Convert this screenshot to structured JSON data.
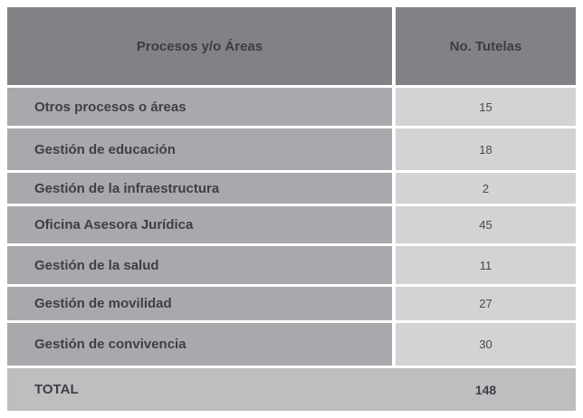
{
  "table": {
    "header": {
      "col_procesos": "Procesos y/o Áreas",
      "col_tutelas": "No. Tutelas"
    },
    "rows": [
      {
        "label": "Otros procesos o áreas",
        "value": "15"
      },
      {
        "label": "Gestión de educación",
        "value": "18"
      },
      {
        "label": "Gestión de la infraestructura",
        "value": "2"
      },
      {
        "label": "Oficina Asesora Jurídica",
        "value": "45"
      },
      {
        "label": "Gestión de la salud",
        "value": "11"
      },
      {
        "label": "Gestión de movilidad",
        "value": "27"
      },
      {
        "label": "Gestión de convivencia",
        "value": "30"
      }
    ],
    "total": {
      "label": "TOTAL",
      "value": "148"
    }
  },
  "colors": {
    "header_bg": "#808285",
    "row_label_bg": "#a7a9ac",
    "row_value_bg": "#d1d3d4",
    "total_row_bg": "#bcbec0",
    "text": "#3e4043",
    "page_bg": "#ffffff"
  },
  "chart_data": {
    "type": "table",
    "columns": [
      "Procesos y/o Áreas",
      "No. Tutelas"
    ],
    "rows": [
      [
        "Otros procesos o áreas",
        15
      ],
      [
        "Gestión de educación",
        18
      ],
      [
        "Gestión de la infraestructura",
        2
      ],
      [
        "Oficina Asesora Jurídica",
        45
      ],
      [
        "Gestión de la salud",
        11
      ],
      [
        "Gestión de movilidad",
        27
      ],
      [
        "Gestión de convivencia",
        30
      ]
    ],
    "total_label": "TOTAL",
    "total_value": 148
  }
}
